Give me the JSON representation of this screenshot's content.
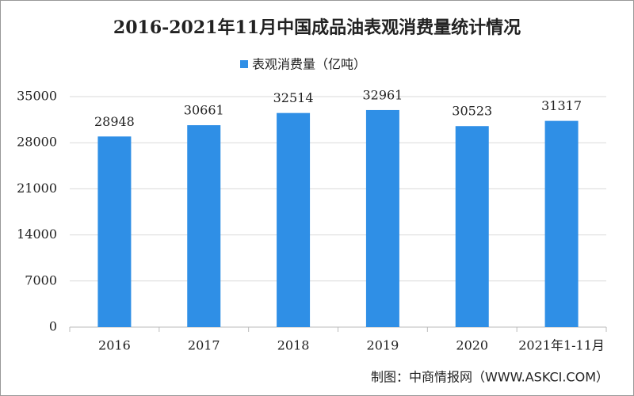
{
  "chart_data": {
    "type": "bar",
    "title": "2016-2021年11月中国成品油表观消费量统计情况",
    "series": [
      {
        "name": "表观消费量（亿吨）",
        "color": "#2f8fe6",
        "values": [
          28948,
          30661,
          32514,
          32961,
          30523,
          31317
        ]
      }
    ],
    "categories": [
      "2016",
      "2017",
      "2018",
      "2019",
      "2020",
      "2021年1-11月"
    ],
    "ylim": [
      0,
      35000
    ],
    "yticks": [
      0,
      7000,
      14000,
      21000,
      28000,
      35000
    ],
    "grid": true,
    "source": "制图：中商情报网（WWW.ASKCI.COM）"
  }
}
